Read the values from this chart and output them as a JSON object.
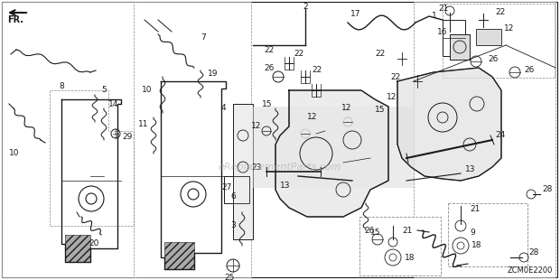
{
  "fig_width": 6.2,
  "fig_height": 3.1,
  "dpi": 100,
  "background_color": "#ffffff",
  "diagram_code": "ZCM0E2200",
  "watermark": "eReplacementParts.com",
  "line_color": "#1a1a1a",
  "text_color": "#1a1a1a",
  "gray": "#888888",
  "light_gray": "#cccccc",
  "shade_gray": "#d0d0d0"
}
